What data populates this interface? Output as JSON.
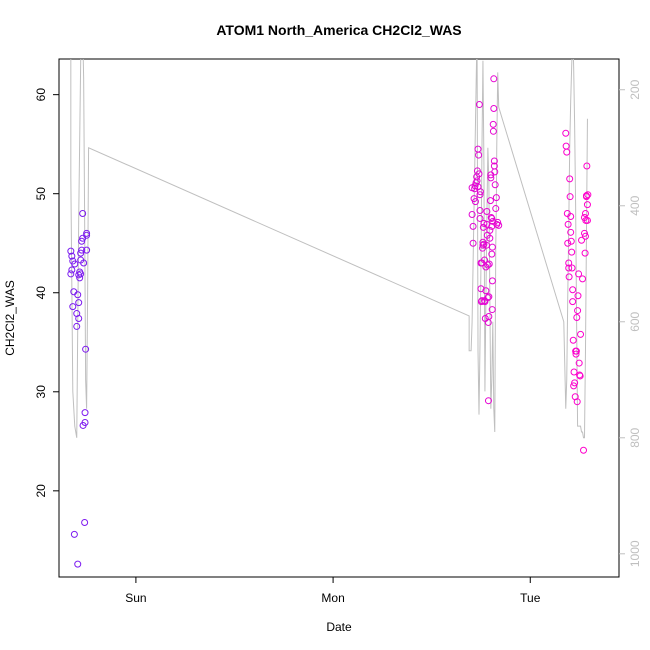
{
  "chart_data": {
    "type": "scatter",
    "title": "ATOM1 North_America CH2Cl2_WAS",
    "xlabel": "Date",
    "ylabel": "CH2Cl2_WAS",
    "x_ticks": [
      "Sun",
      "Mon",
      "Tue"
    ],
    "x_tick_positions": [
      0.75,
      1.75,
      2.75
    ],
    "xlim": [
      0.36,
      3.2
    ],
    "ylim": [
      11.3,
      63.6
    ],
    "y_ticks": [
      20,
      30,
      40,
      50,
      60
    ],
    "y2_ticks": [
      200,
      400,
      600,
      800,
      1000
    ],
    "y2lim": [
      1040,
      147
    ],
    "grid": false,
    "colors": {
      "points_start": "#7a1bf0",
      "points_end": "#ff00cc",
      "altitude_line": "#bfbfbf"
    },
    "series": [
      {
        "values": [
          [
            0.42,
            44.2
          ],
          [
            0.425,
            43.7
          ],
          [
            0.43,
            43.2
          ],
          [
            0.425,
            42.3
          ],
          [
            0.42,
            41.9
          ],
          [
            0.43,
            38.6
          ],
          [
            0.435,
            40.1
          ],
          [
            0.44,
            42.9
          ],
          [
            0.438,
            15.6
          ],
          [
            0.455,
            12.6
          ],
          [
            0.455,
            39.8
          ],
          [
            0.45,
            37.9
          ],
          [
            0.45,
            36.6
          ],
          [
            0.46,
            37.4
          ],
          [
            0.46,
            39.0
          ],
          [
            0.46,
            41.8
          ],
          [
            0.465,
            42.1
          ],
          [
            0.47,
            41.9
          ],
          [
            0.465,
            41.5
          ],
          [
            0.47,
            43.3
          ],
          [
            0.47,
            44.0
          ],
          [
            0.475,
            44.3
          ],
          [
            0.475,
            45.2
          ],
          [
            0.48,
            45.5
          ],
          [
            0.48,
            48.0
          ],
          [
            0.485,
            43.0
          ],
          [
            0.482,
            26.6
          ],
          [
            0.49,
            16.8
          ],
          [
            0.492,
            27.9
          ],
          [
            0.492,
            26.9
          ],
          [
            0.495,
            34.3
          ],
          [
            0.5,
            44.3
          ],
          [
            0.5,
            45.8
          ],
          [
            0.5,
            46.0
          ],
          [
            2.455,
            47.9
          ],
          [
            2.455,
            50.6
          ],
          [
            2.46,
            46.7
          ],
          [
            2.46,
            45.0
          ],
          [
            2.465,
            49.5
          ],
          [
            2.468,
            50.5
          ],
          [
            2.47,
            50.8
          ],
          [
            2.472,
            49.2
          ],
          [
            2.475,
            51.1
          ],
          [
            2.478,
            51.7
          ],
          [
            2.48,
            51.3
          ],
          [
            2.482,
            52.3
          ],
          [
            2.485,
            50.7
          ],
          [
            2.485,
            54.5
          ],
          [
            2.488,
            53.9
          ],
          [
            2.49,
            52.0
          ],
          [
            2.492,
            59.0
          ],
          [
            2.495,
            49.9
          ],
          [
            2.495,
            48.3
          ],
          [
            2.495,
            47.5
          ],
          [
            2.497,
            50.2
          ],
          [
            2.5,
            43.0
          ],
          [
            2.5,
            40.4
          ],
          [
            2.502,
            39.1
          ],
          [
            2.505,
            39.2
          ],
          [
            2.505,
            43.0
          ],
          [
            2.508,
            44.5
          ],
          [
            2.51,
            44.8
          ],
          [
            2.51,
            45.1
          ],
          [
            2.512,
            46.6
          ],
          [
            2.515,
            47.0
          ],
          [
            2.515,
            44.9
          ],
          [
            2.518,
            43.3
          ],
          [
            2.518,
            39.2
          ],
          [
            2.52,
            39.1
          ],
          [
            2.522,
            37.4
          ],
          [
            2.525,
            40.2
          ],
          [
            2.525,
            42.6
          ],
          [
            2.528,
            44.8
          ],
          [
            2.53,
            46.9
          ],
          [
            2.53,
            48.2
          ],
          [
            2.532,
            45.8
          ],
          [
            2.535,
            42.8
          ],
          [
            2.535,
            39.5
          ],
          [
            2.537,
            37.0
          ],
          [
            2.538,
            29.1
          ],
          [
            2.54,
            37.6
          ],
          [
            2.54,
            39.6
          ],
          [
            2.542,
            42.9
          ],
          [
            2.545,
            45.5
          ],
          [
            2.545,
            46.3
          ],
          [
            2.548,
            49.3
          ],
          [
            2.55,
            51.6
          ],
          [
            2.55,
            51.9
          ],
          [
            2.552,
            47.6
          ],
          [
            2.555,
            47.5
          ],
          [
            2.555,
            46.7
          ],
          [
            2.555,
            43.9
          ],
          [
            2.557,
            38.3
          ],
          [
            2.558,
            41.2
          ],
          [
            2.558,
            44.6
          ],
          [
            2.56,
            47.2
          ],
          [
            2.562,
            57.0
          ],
          [
            2.563,
            56.3
          ],
          [
            2.565,
            58.6
          ],
          [
            2.565,
            61.6
          ],
          [
            2.568,
            53.3
          ],
          [
            2.568,
            52.8
          ],
          [
            2.57,
            52.2
          ],
          [
            2.572,
            50.9
          ],
          [
            2.575,
            48.5
          ],
          [
            2.578,
            49.6
          ],
          [
            2.58,
            46.9
          ],
          [
            2.585,
            47.1
          ],
          [
            2.59,
            46.8
          ],
          [
            2.93,
            56.1
          ],
          [
            2.932,
            54.8
          ],
          [
            2.935,
            54.2
          ],
          [
            2.938,
            48.0
          ],
          [
            2.94,
            45.0
          ],
          [
            2.942,
            46.9
          ],
          [
            2.945,
            43.0
          ],
          [
            2.945,
            42.5
          ],
          [
            2.947,
            41.6
          ],
          [
            2.95,
            51.5
          ],
          [
            2.952,
            49.7
          ],
          [
            2.955,
            47.7
          ],
          [
            2.955,
            46.1
          ],
          [
            2.958,
            45.2
          ],
          [
            2.96,
            44.1
          ],
          [
            2.962,
            42.5
          ],
          [
            2.965,
            40.3
          ],
          [
            2.965,
            39.1
          ],
          [
            2.968,
            35.2
          ],
          [
            2.97,
            30.6
          ],
          [
            2.972,
            32.0
          ],
          [
            2.975,
            30.9
          ],
          [
            2.978,
            29.5
          ],
          [
            2.98,
            34.1
          ],
          [
            2.982,
            33.8
          ],
          [
            2.984,
            34.1
          ],
          [
            2.986,
            37.5
          ],
          [
            2.988,
            29.0
          ],
          [
            2.99,
            38.2
          ],
          [
            2.992,
            39.7
          ],
          [
            2.995,
            41.9
          ],
          [
            2.998,
            32.9
          ],
          [
            3.0,
            31.7
          ],
          [
            3.003,
            31.6
          ],
          [
            3.005,
            35.8
          ],
          [
            3.01,
            45.3
          ],
          [
            3.015,
            41.4
          ],
          [
            3.02,
            24.1
          ],
          [
            3.025,
            46.0
          ],
          [
            3.025,
            47.6
          ],
          [
            3.028,
            44.0
          ],
          [
            3.03,
            45.7
          ],
          [
            3.03,
            48.0
          ],
          [
            3.032,
            47.3
          ],
          [
            3.035,
            49.7
          ],
          [
            3.035,
            49.8
          ],
          [
            3.037,
            52.8
          ],
          [
            3.04,
            48.9
          ],
          [
            3.04,
            47.3
          ],
          [
            3.042,
            49.9
          ]
        ]
      },
      {
        "axis": "right",
        "line_points": [
          [
            0.42,
            100
          ],
          [
            0.42,
            350
          ],
          [
            0.43,
            720
          ],
          [
            0.44,
            780
          ],
          [
            0.45,
            800
          ],
          [
            0.46,
            420
          ],
          [
            0.47,
            150
          ],
          [
            0.48,
            100
          ],
          [
            0.485,
            180
          ],
          [
            0.49,
            420
          ],
          [
            0.495,
            700
          ],
          [
            0.5,
            750
          ],
          [
            0.505,
            560
          ],
          [
            0.51,
            300
          ],
          [
            2.44,
            590
          ],
          [
            2.44,
            650
          ],
          [
            2.45,
            650
          ],
          [
            2.455,
            600
          ],
          [
            2.46,
            500
          ],
          [
            2.465,
            400
          ],
          [
            2.47,
            300
          ],
          [
            2.475,
            200
          ],
          [
            2.48,
            100
          ],
          [
            2.485,
            650
          ],
          [
            2.49,
            760
          ],
          [
            2.495,
            640
          ],
          [
            2.5,
            500
          ],
          [
            2.505,
            300
          ],
          [
            2.51,
            150
          ],
          [
            2.515,
            330
          ],
          [
            2.52,
            720
          ],
          [
            2.525,
            560
          ],
          [
            2.53,
            420
          ],
          [
            2.535,
            300
          ],
          [
            2.54,
            360
          ],
          [
            2.545,
            560
          ],
          [
            2.55,
            750
          ],
          [
            2.555,
            700
          ],
          [
            2.56,
            600
          ],
          [
            2.565,
            750
          ],
          [
            2.57,
            790
          ],
          [
            2.575,
            470
          ],
          [
            2.578,
            400
          ],
          [
            2.58,
            300
          ],
          [
            2.585,
            170
          ],
          [
            2.59,
            230
          ],
          [
            2.92,
            600
          ],
          [
            2.93,
            750
          ],
          [
            2.935,
            700
          ],
          [
            2.94,
            560
          ],
          [
            2.945,
            440
          ],
          [
            2.95,
            300
          ],
          [
            2.955,
            220
          ],
          [
            2.96,
            160
          ],
          [
            2.965,
            100
          ],
          [
            2.97,
            160
          ],
          [
            2.975,
            260
          ],
          [
            2.98,
            400
          ],
          [
            2.985,
            600
          ],
          [
            2.99,
            780
          ],
          [
            2.995,
            780
          ],
          [
            3.0,
            780
          ],
          [
            3.005,
            780
          ],
          [
            3.01,
            790
          ],
          [
            3.015,
            790
          ],
          [
            3.02,
            800
          ],
          [
            3.025,
            800
          ],
          [
            3.03,
            650
          ],
          [
            3.035,
            450
          ],
          [
            3.04,
            250
          ]
        ]
      }
    ]
  }
}
